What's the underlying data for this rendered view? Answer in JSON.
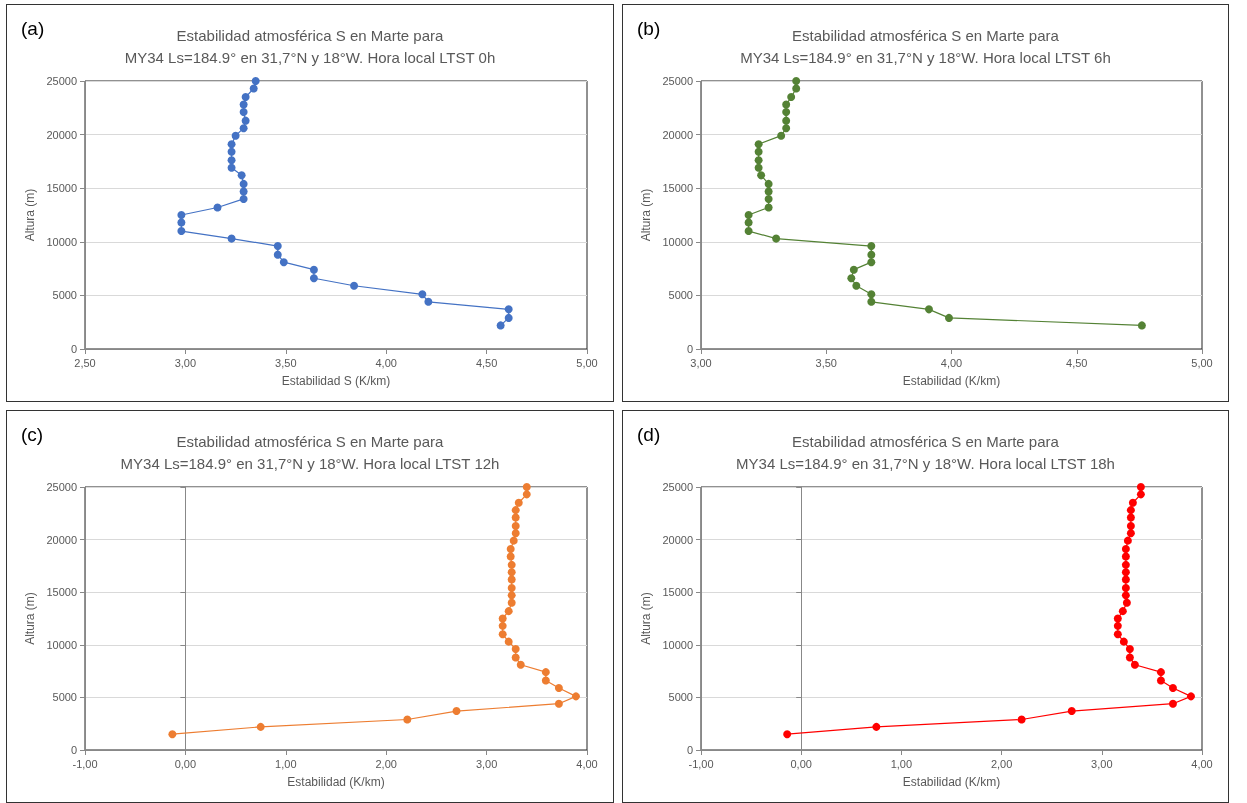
{
  "chart_data": [
    {
      "type": "line",
      "title": "Estabilidad atmosférica S en Marte para\nMY34 Ls=184.9° en 31,7°N y 18°W. Hora local LTST 0h",
      "annotations": [
        "(a)"
      ],
      "xlabel": "Estabilidad S (K/km)",
      "ylabel": "Altura (m)",
      "marker": "circle",
      "line_style": "solid",
      "grid": "y",
      "xlim": [
        2.5,
        5
      ],
      "xticks": [
        {
          "value": 2.5,
          "label": "2,50"
        },
        {
          "value": 3,
          "label": "3,00"
        },
        {
          "value": 3.5,
          "label": "3,50"
        },
        {
          "value": 4,
          "label": "4,00"
        },
        {
          "value": 4.5,
          "label": "4,50"
        },
        {
          "value": 5,
          "label": "5,00"
        }
      ],
      "ylim": [
        0,
        25000
      ],
      "yticks": [
        0,
        5000,
        10000,
        15000,
        20000,
        25000
      ],
      "series": [
        {
          "color": "#4472c4",
          "x": [
            3.35,
            3.34,
            3.3,
            3.29,
            3.29,
            3.3,
            3.29,
            3.25,
            3.23,
            3.23,
            3.23,
            3.23,
            3.28,
            3.29,
            3.29,
            3.29,
            3.16,
            2.98,
            2.98,
            2.98,
            3.23,
            3.46,
            3.46,
            3.49,
            3.64,
            3.64,
            3.84,
            4.18,
            4.21,
            4.61,
            4.61,
            4.57
          ],
          "values": [
            25000,
            24300,
            23500,
            22800,
            22100,
            21300,
            20600,
            19900,
            19100,
            18400,
            17600,
            16900,
            16200,
            15400,
            14700,
            14000,
            13200,
            12500,
            11800,
            11000,
            10300,
            9600,
            8800,
            8100,
            7400,
            6600,
            5900,
            5100,
            4400,
            3700,
            2900,
            2200
          ]
        }
      ]
    },
    {
      "type": "line",
      "title": "Estabilidad atmosférica S en Marte para\nMY34 Ls=184.9° en 31,7°N y 18°W. Hora local LTST 6h",
      "annotations": [
        "(b)"
      ],
      "xlabel": "Estabilidad (K/km)",
      "ylabel": "Altura (m)",
      "marker": "circle",
      "line_style": "solid",
      "grid": "y",
      "xlim": [
        3,
        5
      ],
      "xticks": [
        {
          "value": 3,
          "label": "3,00"
        },
        {
          "value": 3.5,
          "label": "3,50"
        },
        {
          "value": 4,
          "label": "4,00"
        },
        {
          "value": 4.5,
          "label": "4,50"
        },
        {
          "value": 5,
          "label": "5,00"
        }
      ],
      "ylim": [
        0,
        25000
      ],
      "yticks": [
        0,
        5000,
        10000,
        15000,
        20000,
        25000
      ],
      "series": [
        {
          "color": "#548235",
          "x": [
            3.38,
            3.38,
            3.36,
            3.34,
            3.34,
            3.34,
            3.34,
            3.32,
            3.23,
            3.23,
            3.23,
            3.23,
            3.24,
            3.27,
            3.27,
            3.27,
            3.27,
            3.19,
            3.19,
            3.19,
            3.3,
            3.68,
            3.68,
            3.68,
            3.61,
            3.6,
            3.62,
            3.68,
            3.68,
            3.91,
            3.99,
            4.76
          ],
          "values": [
            25000,
            24300,
            23500,
            22800,
            22100,
            21300,
            20600,
            19900,
            19100,
            18400,
            17600,
            16900,
            16200,
            15400,
            14700,
            14000,
            13200,
            12500,
            11800,
            11000,
            10300,
            9600,
            8800,
            8100,
            7400,
            6600,
            5900,
            5100,
            4400,
            3700,
            2900,
            2200
          ]
        }
      ]
    },
    {
      "type": "line",
      "title": "Estabilidad atmosférica S en Marte para\nMY34 Ls=184.9° en 31,7°N y 18°W. Hora local LTST 12h",
      "annotations": [
        "(c)"
      ],
      "xlabel": "Estabilidad (K/km)",
      "ylabel": "Altura (m)",
      "marker": "circle",
      "line_style": "solid",
      "grid": "y",
      "xlim": [
        -1,
        4
      ],
      "xticks": [
        {
          "value": -1,
          "label": "-1,00"
        },
        {
          "value": 0,
          "label": "0,00"
        },
        {
          "value": 1,
          "label": "1,00"
        },
        {
          "value": 2,
          "label": "2,00"
        },
        {
          "value": 3,
          "label": "3,00"
        },
        {
          "value": 4,
          "label": "4,00"
        }
      ],
      "ylim": [
        0,
        25000
      ],
      "yticks": [
        0,
        5000,
        10000,
        15000,
        20000,
        25000
      ],
      "series": [
        {
          "color": "#ed7d31",
          "x": [
            3.4,
            3.4,
            3.32,
            3.29,
            3.29,
            3.29,
            3.29,
            3.27,
            3.24,
            3.24,
            3.25,
            3.25,
            3.25,
            3.25,
            3.25,
            3.25,
            3.22,
            3.16,
            3.16,
            3.16,
            3.22,
            3.29,
            3.29,
            3.34,
            3.59,
            3.59,
            3.72,
            3.89,
            3.72,
            2.7,
            2.21,
            0.75,
            -0.13
          ],
          "values": [
            25000,
            24300,
            23500,
            22800,
            22100,
            21300,
            20600,
            19900,
            19100,
            18400,
            17600,
            16900,
            16200,
            15400,
            14700,
            14000,
            13200,
            12500,
            11800,
            11000,
            10300,
            9600,
            8800,
            8100,
            7400,
            6600,
            5900,
            5100,
            4400,
            3700,
            2900,
            2200,
            1500
          ]
        }
      ]
    },
    {
      "type": "line",
      "title": "Estabilidad atmosférica S en Marte para\nMY34 Ls=184.9° en 31,7°N y 18°W. Hora local LTST 18h",
      "annotations": [
        "(d)"
      ],
      "xlabel": "Estabilidad (K/km)",
      "ylabel": "Altura (m)",
      "marker": "circle",
      "line_style": "solid",
      "grid": "y",
      "xlim": [
        -1,
        4
      ],
      "xticks": [
        {
          "value": -1,
          "label": "-1,00"
        },
        {
          "value": 0,
          "label": "0,00"
        },
        {
          "value": 1,
          "label": "1,00"
        },
        {
          "value": 2,
          "label": "2,00"
        },
        {
          "value": 3,
          "label": "3,00"
        },
        {
          "value": 4,
          "label": "4,00"
        }
      ],
      "ylim": [
        0,
        25000
      ],
      "yticks": [
        0,
        5000,
        10000,
        15000,
        20000,
        25000
      ],
      "series": [
        {
          "color": "#ff0000",
          "x": [
            3.39,
            3.39,
            3.31,
            3.29,
            3.29,
            3.29,
            3.29,
            3.26,
            3.24,
            3.24,
            3.24,
            3.24,
            3.24,
            3.24,
            3.24,
            3.25,
            3.21,
            3.16,
            3.16,
            3.16,
            3.22,
            3.28,
            3.28,
            3.33,
            3.59,
            3.59,
            3.71,
            3.89,
            3.71,
            2.7,
            2.2,
            0.75,
            -0.14
          ],
          "values": [
            25000,
            24300,
            23500,
            22800,
            22100,
            21300,
            20600,
            19900,
            19100,
            18400,
            17600,
            16900,
            16200,
            15400,
            14700,
            14000,
            13200,
            12500,
            11800,
            11000,
            10300,
            9600,
            8800,
            8100,
            7400,
            6600,
            5900,
            5100,
            4400,
            3700,
            2900,
            2200,
            1500
          ]
        }
      ]
    }
  ]
}
